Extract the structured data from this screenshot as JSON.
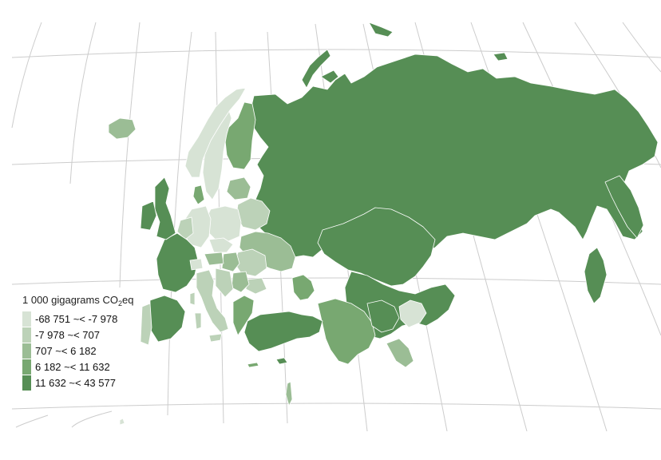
{
  "legend": {
    "title_main": "1 000 gigagrams CO",
    "title_sub": "2",
    "title_tail": "eq",
    "classes": [
      {
        "label": "-68 751 ~< -7 978",
        "color": "#d7e3d5"
      },
      {
        "label": "-7 978 ~< 707",
        "color": "#bcd2b8"
      },
      {
        "label": "707 ~< 6 182",
        "color": "#9bbd95"
      },
      {
        "label": "6 182 ~< 11 632",
        "color": "#78a871"
      },
      {
        "label": "11 632 ~< 43 577",
        "color": "#568e55"
      }
    ]
  },
  "colors": {
    "graticule": "#cccccc",
    "border": "#ffffff",
    "background": "#ffffff"
  },
  "icons": {}
}
